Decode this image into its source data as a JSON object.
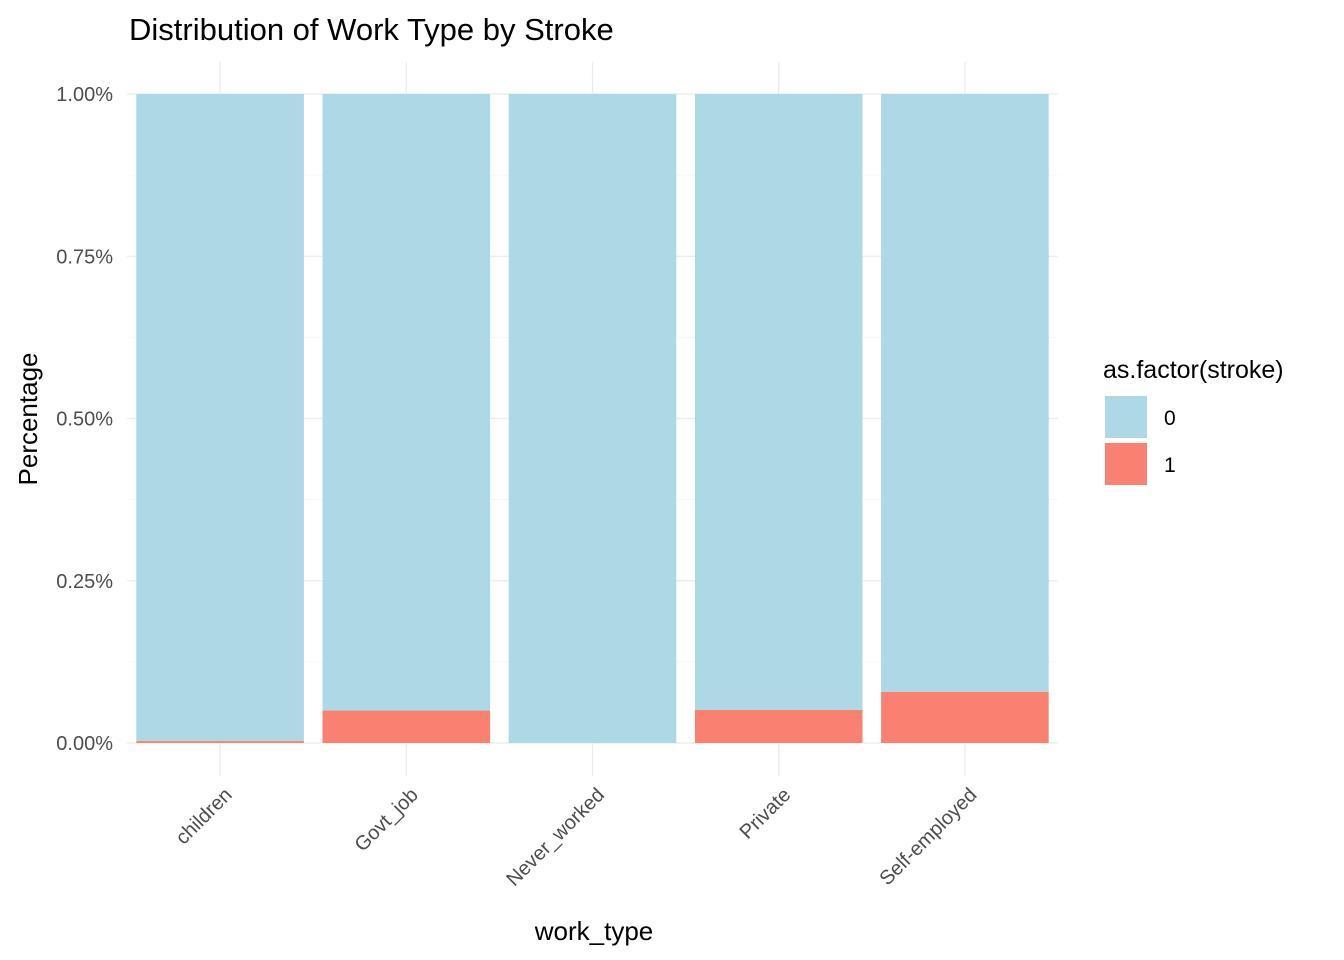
{
  "chart_data": {
    "type": "bar",
    "stacked": true,
    "title": "Distribution of Work Type by Stroke",
    "xlabel": "work_type",
    "ylabel": "Percentage",
    "categories": [
      "children",
      "Govt_job",
      "Never_worked",
      "Private",
      "Self-employed"
    ],
    "series": [
      {
        "name": "0",
        "color": "#ADD8E6",
        "values": [
          0.997,
          0.95,
          1.0,
          0.949,
          0.921
        ]
      },
      {
        "name": "1",
        "color": "#FA8072",
        "values": [
          0.003,
          0.05,
          0.0,
          0.051,
          0.079
        ]
      }
    ],
    "ylim": [
      0,
      1
    ],
    "yticks": [
      0,
      0.25,
      0.5,
      0.75,
      1.0
    ],
    "ytick_labels": [
      "0.00%",
      "0.25%",
      "0.50%",
      "0.75%",
      "1.00%"
    ],
    "grid": true,
    "legend": {
      "title": "as.factor(stroke)",
      "position": "right",
      "entries": [
        "0",
        "1"
      ]
    }
  }
}
